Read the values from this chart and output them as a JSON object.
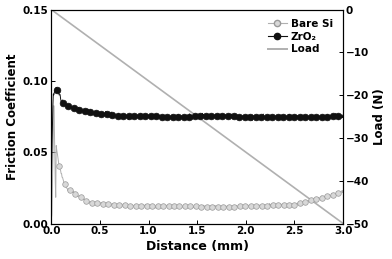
{
  "title": "",
  "xlabel": "Distance (mm)",
  "ylabel_left": "Friction Coefficient",
  "ylabel_right": "Load (N)",
  "xlim": [
    0,
    3.0
  ],
  "ylim_left": [
    0.0,
    0.15
  ],
  "ylim_right": [
    -50,
    0
  ],
  "xticks": [
    0.0,
    0.5,
    1.0,
    1.5,
    2.0,
    2.5,
    3.0
  ],
  "yticks_left": [
    0.0,
    0.05,
    0.1,
    0.15
  ],
  "yticks_right": [
    0,
    -10,
    -20,
    -30,
    -40,
    -50
  ],
  "load_line_color": "#b0b0b0",
  "zro2_line_color": "#111111",
  "zro2_dot_face": "#111111",
  "zro2_dot_edge": "#111111",
  "bare_si_line_color": "#b0b0b0",
  "bare_si_dot_face": "#d8d8d8",
  "bare_si_dot_edge": "#999999",
  "background_color": "#ffffff",
  "legend_labels": [
    "Bare Si",
    "ZrO₂",
    "Load"
  ],
  "figure_width": 3.92,
  "figure_height": 2.59,
  "dpi": 100
}
